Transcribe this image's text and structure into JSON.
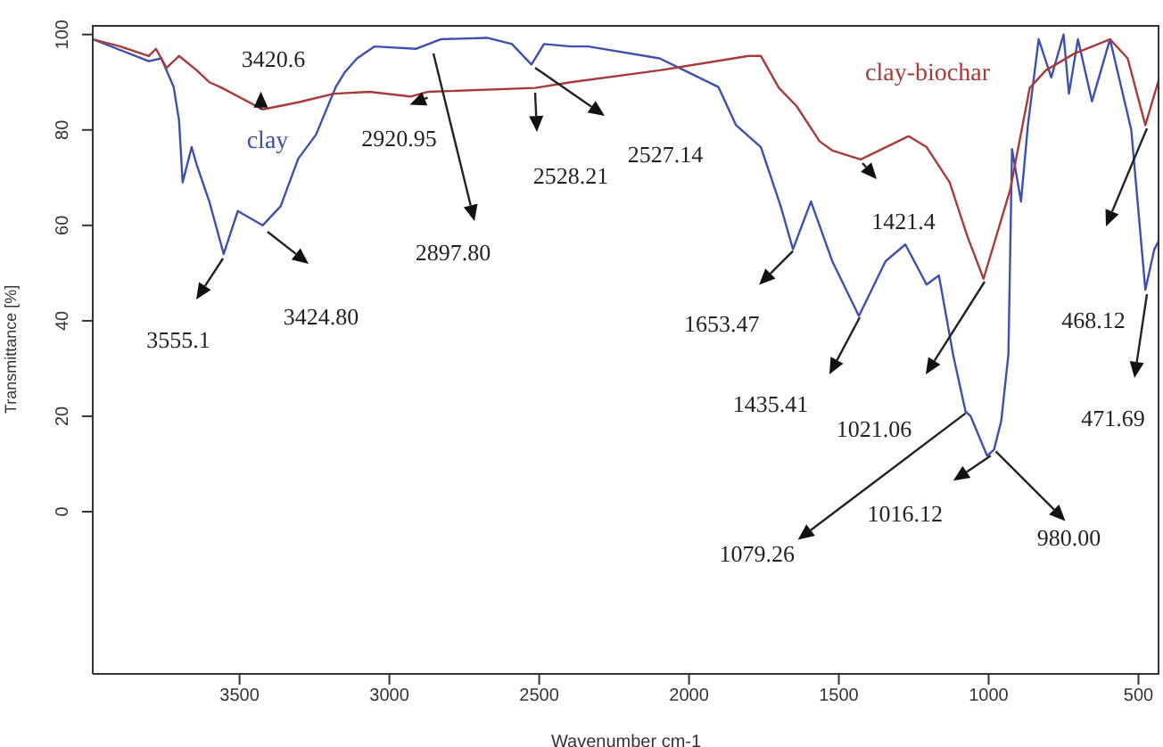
{
  "chart_data": {
    "type": "line",
    "xlabel": "Wavenumber cm-1",
    "ylabel": "Transmittance [%]",
    "xlim": [
      3990,
      430
    ],
    "xticks": [
      3500,
      3000,
      2500,
      2000,
      1500,
      1000,
      500
    ],
    "ylim": [
      -34,
      102
    ],
    "yticks": [
      0,
      20,
      40,
      60,
      80,
      100
    ],
    "grid": false,
    "legend": false,
    "marker": "none",
    "line_style": "solid",
    "series": [
      {
        "name": "clay",
        "color": "#3f4fb0",
        "x": [
          3990,
          3803,
          3761,
          3720,
          3702,
          3690,
          3660,
          3643,
          3601,
          3553,
          3506,
          3423,
          3363,
          3304,
          3245,
          3179,
          3150,
          3108,
          3049,
          2912,
          2829,
          2674,
          2591,
          2526,
          2484,
          2395,
          2336,
          2098,
          1902,
          1843,
          1760,
          1694,
          1653,
          1593,
          1522,
          1433,
          1344,
          1278,
          1207,
          1166,
          1118,
          1077,
          1060,
          1005,
          982,
          958,
          934,
          922,
          892,
          869,
          833,
          791,
          750,
          732,
          702,
          655,
          595,
          524,
          477,
          447,
          430
        ],
        "values": [
          99,
          94.4,
          95,
          89,
          82,
          69,
          76.4,
          72.7,
          65,
          54,
          63,
          60,
          64,
          74,
          79,
          89,
          92,
          95,
          97.5,
          97,
          99,
          99.3,
          98,
          93.7,
          98,
          97.5,
          97.5,
          95,
          89,
          81,
          76.4,
          64,
          55,
          65,
          52.5,
          41,
          52.5,
          56,
          47.6,
          49.5,
          32.7,
          21,
          20,
          11.7,
          13,
          19,
          33,
          76,
          65,
          81,
          99,
          91,
          100,
          87.6,
          99,
          86,
          99,
          80,
          46.5,
          55,
          57
        ]
      },
      {
        "name": "clay-biochar",
        "color": "#a83a3a",
        "x": [
          3990,
          3898,
          3803,
          3779,
          3744,
          3702,
          3643,
          3601,
          3565,
          3423,
          3304,
          3185,
          3066,
          2930,
          2870,
          2514,
          2395,
          2098,
          1801,
          1760,
          1700,
          1641,
          1564,
          1522,
          1427,
          1267,
          1207,
          1130,
          1071,
          1017,
          928,
          863,
          809,
          714,
          595,
          536,
          477,
          430
        ],
        "values": [
          99,
          97.5,
          95.5,
          97,
          93,
          95.5,
          92.5,
          90,
          89,
          84.3,
          85.8,
          87.6,
          88,
          87,
          88,
          88.8,
          90,
          92.5,
          95.5,
          95.5,
          88.8,
          85,
          77.6,
          75.7,
          73.8,
          78.7,
          76.4,
          69,
          57.7,
          48.8,
          67.5,
          88.8,
          92.5,
          96,
          99,
          95,
          81,
          91
        ]
      }
    ],
    "annotations": [
      "3555.1",
      "3424.80",
      {
        "text": "3420.6",
        "x": 3423,
        "y": 84.3
      },
      {
        "text": "2920.95",
        "x": 2920,
        "y": 87.5
      },
      "2897.80",
      "2528.21",
      "2527.14",
      {
        "text": "1421.4",
        "x": 1427,
        "y": 73.8
      },
      {
        "text": "1653.47",
        "x": 1653,
        "y": 55
      },
      "1435.41",
      "1021.06",
      {
        "text": "1079.26",
        "x": 1077,
        "y": 21
      },
      {
        "text": "1016.12",
        "x": 1005,
        "y": 11.7
      },
      {
        "text": "980.00",
        "x": 982,
        "y": 13
      },
      "468.12",
      "471.69"
    ]
  }
}
